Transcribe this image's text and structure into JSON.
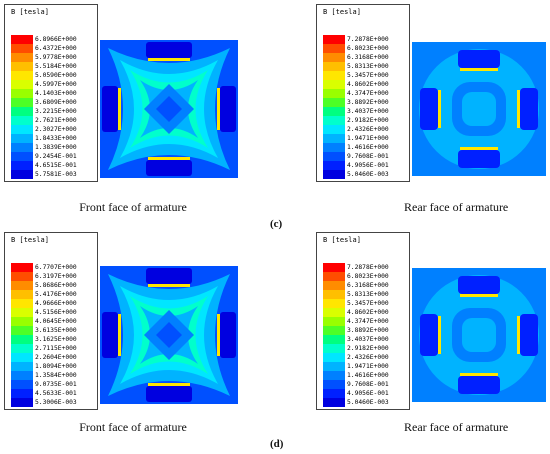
{
  "colors": [
    "#ff0000",
    "#ff4d00",
    "#ff8c00",
    "#ffbf00",
    "#ffe600",
    "#d9ff00",
    "#99ff00",
    "#4dff26",
    "#00ff80",
    "#00ffcc",
    "#00e6ff",
    "#00b3ff",
    "#0080ff",
    "#0050ff",
    "#0020ff",
    "#0000e0"
  ],
  "panels": [
    {
      "label": "(c)",
      "front": {
        "caption": "Front face of armature",
        "legend": {
          "title": "B [tesla]",
          "values": [
            "6.8966E+000",
            "6.4372E+000",
            "5.9778E+000",
            "5.5184E+000",
            "5.0590E+000",
            "4.5997E+000",
            "4.1403E+000",
            "3.6809E+000",
            "3.2215E+000",
            "2.7621E+000",
            "2.3027E+000",
            "1.8433E+000",
            "1.3839E+000",
            "9.2454E-001",
            "4.6515E-001",
            "5.7581E-003"
          ]
        }
      },
      "rear": {
        "caption": "Rear face of armature",
        "legend": {
          "title": "B [tesla]",
          "values": [
            "7.2878E+000",
            "6.8023E+000",
            "6.3168E+000",
            "5.8313E+000",
            "5.3457E+000",
            "4.8602E+000",
            "4.3747E+000",
            "3.8892E+000",
            "3.4037E+000",
            "2.9182E+000",
            "2.4326E+000",
            "1.9471E+000",
            "1.4616E+000",
            "9.7608E-001",
            "4.9056E-001",
            "5.0460E-003"
          ]
        }
      }
    },
    {
      "label": "(d)",
      "front": {
        "caption": "Front face of armature",
        "legend": {
          "title": "B [tesla]",
          "values": [
            "6.7707E+000",
            "6.3197E+000",
            "5.8686E+000",
            "5.4176E+000",
            "4.9666E+000",
            "4.5156E+000",
            "4.0645E+000",
            "3.6135E+000",
            "3.1625E+000",
            "2.7115E+000",
            "2.2604E+000",
            "1.8094E+000",
            "1.3584E+000",
            "9.0735E-001",
            "4.5633E-001",
            "5.3006E-003"
          ]
        }
      },
      "rear": {
        "caption": "Rear face of armature",
        "legend": {
          "title": "B [tesla]",
          "values": [
            "7.2878E+000",
            "6.8023E+000",
            "6.3168E+000",
            "5.8313E+000",
            "5.3457E+000",
            "4.8602E+000",
            "4.3747E+000",
            "3.8892E+000",
            "3.4037E+000",
            "2.9182E+000",
            "2.4326E+000",
            "1.9471E+000",
            "1.4616E+000",
            "9.7608E-001",
            "4.9056E-001",
            "5.0460E-003"
          ]
        }
      }
    }
  ]
}
